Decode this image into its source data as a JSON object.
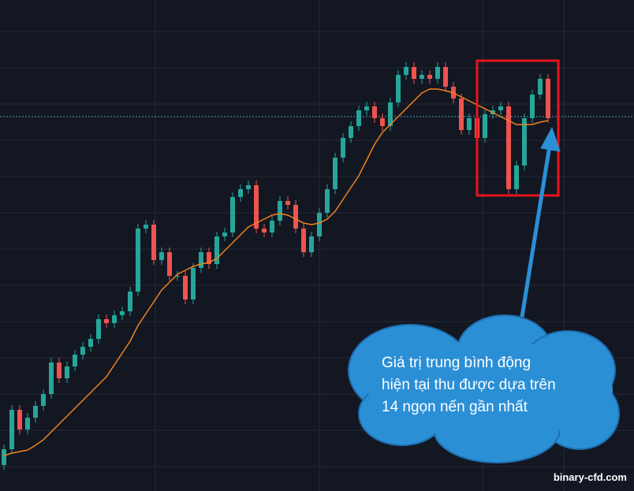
{
  "chart_data": {
    "type": "candlestick",
    "open": [
      33,
      53,
      103,
      78,
      93,
      108,
      123,
      163,
      143,
      158,
      173,
      183,
      193,
      218,
      213,
      223,
      228,
      253,
      333,
      338,
      293,
      303,
      273,
      273,
      243,
      283,
      303,
      288,
      323,
      328,
      373,
      383,
      388,
      333,
      328,
      343,
      368,
      363,
      333,
      303,
      323,
      353,
      383,
      423,
      448,
      463,
      483,
      488,
      473,
      463,
      493,
      528,
      538,
      523,
      528,
      523,
      538,
      513,
      498,
      458,
      473,
      448,
      478,
      483,
      488,
      383,
      413,
      473,
      503,
      523
    ],
    "high": [
      59,
      109,
      109,
      99,
      114,
      129,
      169,
      169,
      164,
      179,
      189,
      199,
      224,
      224,
      229,
      234,
      259,
      339,
      344,
      344,
      309,
      309,
      279,
      279,
      289,
      309,
      309,
      329,
      334,
      379,
      389,
      394,
      394,
      339,
      349,
      374,
      374,
      369,
      339,
      329,
      359,
      389,
      429,
      454,
      469,
      489,
      494,
      494,
      479,
      499,
      534,
      544,
      544,
      534,
      534,
      544,
      544,
      519,
      504,
      479,
      479,
      484,
      489,
      494,
      494,
      419,
      479,
      509,
      529,
      529
    ],
    "low": [
      27,
      47,
      72,
      72,
      87,
      102,
      117,
      137,
      137,
      152,
      167,
      177,
      187,
      207,
      207,
      217,
      222,
      247,
      327,
      287,
      287,
      267,
      267,
      237,
      237,
      277,
      282,
      282,
      317,
      322,
      367,
      377,
      327,
      322,
      322,
      337,
      357,
      327,
      297,
      297,
      317,
      347,
      377,
      417,
      442,
      457,
      477,
      467,
      457,
      457,
      487,
      522,
      517,
      517,
      517,
      517,
      507,
      492,
      452,
      452,
      442,
      442,
      472,
      477,
      377,
      377,
      407,
      467,
      497,
      467
    ],
    "close": [
      53,
      103,
      78,
      93,
      108,
      123,
      163,
      143,
      158,
      173,
      183,
      193,
      218,
      213,
      223,
      228,
      253,
      333,
      338,
      293,
      303,
      273,
      273,
      243,
      283,
      303,
      288,
      323,
      328,
      373,
      383,
      388,
      333,
      328,
      343,
      368,
      363,
      333,
      303,
      323,
      353,
      383,
      423,
      448,
      463,
      483,
      488,
      473,
      463,
      493,
      528,
      538,
      523,
      528,
      523,
      538,
      513,
      498,
      458,
      473,
      448,
      478,
      483,
      488,
      383,
      413,
      473,
      503,
      523,
      473
    ],
    "up_color": "#26a69a",
    "down_color": "#ef5350",
    "moving_average": {
      "color": "#f0831e",
      "values": [
        45,
        48,
        50,
        52,
        58,
        65,
        75,
        85,
        95,
        105,
        115,
        125,
        135,
        145,
        160,
        175,
        190,
        210,
        225,
        240,
        255,
        265,
        275,
        280,
        285,
        288,
        290,
        295,
        305,
        315,
        325,
        335,
        340,
        345,
        350,
        352,
        350,
        345,
        340,
        338,
        340,
        345,
        355,
        370,
        385,
        400,
        420,
        440,
        455,
        465,
        475,
        485,
        495,
        505,
        510,
        510,
        508,
        505,
        500,
        495,
        490,
        485,
        480,
        475,
        470,
        465,
        465,
        465,
        468,
        470
      ]
    },
    "ylim": [
      0,
      623
    ],
    "annotation": [
      "Giá trị trung bình động",
      "hiện tại thu được dựa trên",
      "14 ngọn nến gần nhất"
    ],
    "watermark": "binary-cfd.com"
  }
}
